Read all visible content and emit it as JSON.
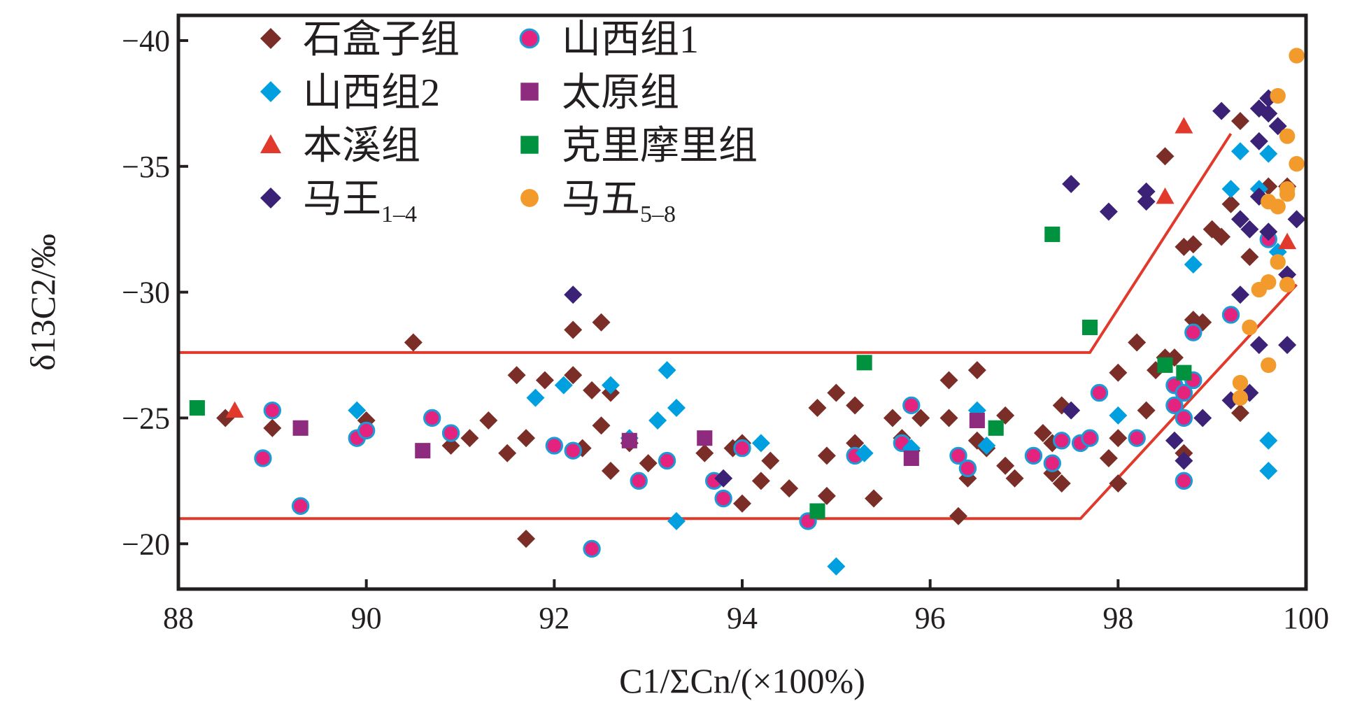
{
  "chart_data": {
    "type": "scatter",
    "xlabel": "C1/ΣCn/(×100%)",
    "ylabel": "δ13C2/‰",
    "xlim": [
      88,
      100
    ],
    "ylim": [
      -41,
      -18.2
    ],
    "y_reversed": true,
    "xticks": [
      "88",
      "90",
      "92",
      "94",
      "96",
      "98",
      "100"
    ],
    "yticks": [
      "−40",
      "−35",
      "−30",
      "−25",
      "−20"
    ],
    "legend": "top-left",
    "series": [
      {
        "name": "石盒子组",
        "marker": "diamond",
        "color": "#7b2e27",
        "points": [
          [
            88.5,
            -25.0
          ],
          [
            89.0,
            -24.6
          ],
          [
            90.0,
            -24.9
          ],
          [
            90.5,
            -28.0
          ],
          [
            90.9,
            -23.9
          ],
          [
            91.1,
            -24.2
          ],
          [
            91.3,
            -24.9
          ],
          [
            91.5,
            -23.6
          ],
          [
            91.6,
            -26.7
          ],
          [
            91.7,
            -24.2
          ],
          [
            91.7,
            -20.2
          ],
          [
            91.9,
            -26.5
          ],
          [
            92.2,
            -26.7
          ],
          [
            92.2,
            -28.5
          ],
          [
            92.3,
            -23.8
          ],
          [
            92.4,
            -26.1
          ],
          [
            92.5,
            -28.8
          ],
          [
            92.5,
            -24.7
          ],
          [
            92.6,
            -22.9
          ],
          [
            92.6,
            -26.0
          ],
          [
            92.8,
            -24.0
          ],
          [
            93.0,
            -23.2
          ],
          [
            93.6,
            -23.6
          ],
          [
            93.9,
            -23.8
          ],
          [
            94.0,
            -24.0
          ],
          [
            94.0,
            -21.6
          ],
          [
            94.2,
            -22.5
          ],
          [
            94.3,
            -23.3
          ],
          [
            94.5,
            -22.2
          ],
          [
            94.8,
            -25.4
          ],
          [
            94.9,
            -21.9
          ],
          [
            94.9,
            -23.5
          ],
          [
            95.0,
            -26.0
          ],
          [
            95.2,
            -25.5
          ],
          [
            95.2,
            -24.0
          ],
          [
            95.4,
            -21.8
          ],
          [
            95.6,
            -25.0
          ],
          [
            95.7,
            -24.2
          ],
          [
            95.8,
            -23.7
          ],
          [
            95.9,
            -25.0
          ],
          [
            96.2,
            -25.0
          ],
          [
            96.2,
            -26.5
          ],
          [
            96.3,
            -21.1
          ],
          [
            96.4,
            -22.6
          ],
          [
            96.5,
            -26.9
          ],
          [
            96.5,
            -24.1
          ],
          [
            96.6,
            -23.8
          ],
          [
            96.8,
            -23.1
          ],
          [
            96.8,
            -25.1
          ],
          [
            96.9,
            -22.6
          ],
          [
            97.2,
            -24.4
          ],
          [
            97.3,
            -24.0
          ],
          [
            97.3,
            -22.8
          ],
          [
            97.4,
            -22.4
          ],
          [
            97.4,
            -25.5
          ],
          [
            97.9,
            -23.4
          ],
          [
            98.0,
            -22.4
          ],
          [
            98.0,
            -24.2
          ],
          [
            98.0,
            -26.8
          ],
          [
            98.2,
            -28.0
          ],
          [
            98.3,
            -25.3
          ],
          [
            98.4,
            -26.9
          ],
          [
            98.5,
            -27.4
          ],
          [
            98.5,
            -35.4
          ],
          [
            98.6,
            -27.4
          ],
          [
            98.7,
            -23.6
          ],
          [
            98.7,
            -31.8
          ],
          [
            98.8,
            -31.9
          ],
          [
            98.8,
            -28.9
          ],
          [
            98.9,
            -28.8
          ],
          [
            99.0,
            -32.5
          ],
          [
            99.1,
            -32.2
          ],
          [
            99.2,
            -33.5
          ],
          [
            99.3,
            -36.8
          ],
          [
            99.3,
            -25.2
          ],
          [
            99.4,
            -31.4
          ],
          [
            99.6,
            -34.2
          ],
          [
            99.8,
            -34.2
          ]
        ]
      },
      {
        "name": "山西组1",
        "marker": "circle",
        "color": "#e4237e",
        "points": [
          [
            88.9,
            -23.4
          ],
          [
            89.0,
            -25.3
          ],
          [
            89.3,
            -21.5
          ],
          [
            89.9,
            -24.2
          ],
          [
            90.0,
            -24.5
          ],
          [
            90.7,
            -25.0
          ],
          [
            90.9,
            -24.4
          ],
          [
            92.0,
            -23.9
          ],
          [
            92.2,
            -23.7
          ],
          [
            92.4,
            -19.8
          ],
          [
            92.9,
            -22.5
          ],
          [
            93.2,
            -23.3
          ],
          [
            93.7,
            -22.5
          ],
          [
            93.8,
            -21.8
          ],
          [
            94.0,
            -23.8
          ],
          [
            94.7,
            -20.9
          ],
          [
            95.2,
            -23.5
          ],
          [
            95.7,
            -24.0
          ],
          [
            95.8,
            -25.5
          ],
          [
            96.3,
            -23.5
          ],
          [
            96.4,
            -23.0
          ],
          [
            97.1,
            -23.5
          ],
          [
            97.3,
            -23.2
          ],
          [
            97.4,
            -24.1
          ],
          [
            97.6,
            -24.0
          ],
          [
            97.7,
            -24.2
          ],
          [
            97.8,
            -26.0
          ],
          [
            98.2,
            -24.2
          ],
          [
            98.6,
            -25.5
          ],
          [
            98.6,
            -26.3
          ],
          [
            98.7,
            -22.5
          ],
          [
            98.7,
            -25.0
          ],
          [
            98.7,
            -26.0
          ],
          [
            98.8,
            -26.5
          ],
          [
            98.8,
            -28.4
          ],
          [
            99.2,
            -29.1
          ],
          [
            99.6,
            -32.1
          ]
        ]
      },
      {
        "name": "山西组2",
        "marker": "diamond",
        "color": "#00a0e0",
        "points": [
          [
            89.9,
            -25.3
          ],
          [
            91.8,
            -25.8
          ],
          [
            92.1,
            -26.3
          ],
          [
            92.6,
            -26.3
          ],
          [
            92.8,
            -24.2
          ],
          [
            93.2,
            -26.9
          ],
          [
            93.1,
            -24.9
          ],
          [
            93.3,
            -25.4
          ],
          [
            93.3,
            -20.9
          ],
          [
            94.2,
            -24.0
          ],
          [
            95.0,
            -19.1
          ],
          [
            95.3,
            -23.6
          ],
          [
            95.8,
            -23.8
          ],
          [
            96.5,
            -25.3
          ],
          [
            96.6,
            -23.9
          ],
          [
            98.0,
            -25.1
          ],
          [
            98.8,
            -31.1
          ],
          [
            99.2,
            -34.1
          ],
          [
            99.3,
            -35.6
          ],
          [
            99.5,
            -34.1
          ],
          [
            99.6,
            -35.5
          ],
          [
            99.7,
            -31.6
          ],
          [
            99.6,
            -24.1
          ],
          [
            99.6,
            -22.9
          ]
        ]
      },
      {
        "name": "太原组",
        "marker": "square",
        "color": "#8e2b7e",
        "points": [
          [
            89.3,
            -24.6
          ],
          [
            90.6,
            -23.7
          ],
          [
            92.8,
            -24.1
          ],
          [
            93.6,
            -24.2
          ],
          [
            95.8,
            -23.4
          ],
          [
            96.5,
            -24.9
          ]
        ]
      },
      {
        "name": "本溪组",
        "marker": "triangle",
        "color": "#e13a2c",
        "points": [
          [
            88.6,
            -25.3
          ],
          [
            98.5,
            -33.8
          ],
          [
            98.7,
            -36.6
          ],
          [
            99.8,
            -32.0
          ]
        ]
      },
      {
        "name": "克里摩里组",
        "marker": "square",
        "color": "#00923f",
        "points": [
          [
            88.2,
            -25.4
          ],
          [
            94.8,
            -21.3
          ],
          [
            95.3,
            -27.2
          ],
          [
            96.7,
            -24.6
          ],
          [
            97.3,
            -32.3
          ],
          [
            97.7,
            -28.6
          ],
          [
            98.5,
            -27.1
          ],
          [
            98.7,
            -26.8
          ]
        ]
      },
      {
        "name": "马王1–4",
        "name_main": "马王",
        "name_sub": "1–4",
        "marker": "diamond",
        "color": "#3b2276",
        "points": [
          [
            92.2,
            -29.9
          ],
          [
            93.8,
            -22.6
          ],
          [
            97.5,
            -25.3
          ],
          [
            97.5,
            -34.3
          ],
          [
            97.9,
            -33.2
          ],
          [
            98.3,
            -34.0
          ],
          [
            98.3,
            -33.6
          ],
          [
            98.6,
            -24.1
          ],
          [
            98.7,
            -23.3
          ],
          [
            98.9,
            -25.0
          ],
          [
            99.1,
            -37.2
          ],
          [
            99.2,
            -25.7
          ],
          [
            99.3,
            -29.9
          ],
          [
            99.3,
            -32.9
          ],
          [
            99.4,
            -32.5
          ],
          [
            99.5,
            -36.0
          ],
          [
            99.5,
            -37.3
          ],
          [
            99.6,
            -37.7
          ],
          [
            99.6,
            -37.1
          ],
          [
            99.7,
            -36.6
          ],
          [
            99.5,
            -33.8
          ],
          [
            99.6,
            -32.4
          ],
          [
            99.5,
            -27.9
          ],
          [
            99.8,
            -27.9
          ],
          [
            99.8,
            -30.7
          ],
          [
            99.9,
            -32.9
          ],
          [
            99.4,
            -26.0
          ]
        ]
      },
      {
        "name": "马五5–8",
        "name_main": "马五",
        "name_sub": "5–8",
        "marker": "circle",
        "color": "#f39a2c",
        "points": [
          [
            99.9,
            -39.4
          ],
          [
            99.7,
            -37.8
          ],
          [
            99.8,
            -36.2
          ],
          [
            99.9,
            -35.1
          ],
          [
            99.8,
            -34.1
          ],
          [
            99.6,
            -33.6
          ],
          [
            99.7,
            -33.4
          ],
          [
            99.8,
            -33.9
          ],
          [
            99.7,
            -31.2
          ],
          [
            99.6,
            -30.4
          ],
          [
            99.5,
            -30.1
          ],
          [
            99.8,
            -30.3
          ],
          [
            99.4,
            -28.6
          ],
          [
            99.6,
            -27.1
          ],
          [
            99.3,
            -26.4
          ],
          [
            99.3,
            -25.8
          ]
        ]
      }
    ],
    "boundary_lines": [
      {
        "color": "#e13a2c",
        "points": [
          [
            88,
            -27.6
          ],
          [
            97.7,
            -27.6
          ],
          [
            99.2,
            -36.3
          ]
        ]
      },
      {
        "color": "#e13a2c",
        "points": [
          [
            88,
            -21.0
          ],
          [
            97.6,
            -21.0
          ],
          [
            99.9,
            -30.3
          ]
        ]
      }
    ]
  }
}
